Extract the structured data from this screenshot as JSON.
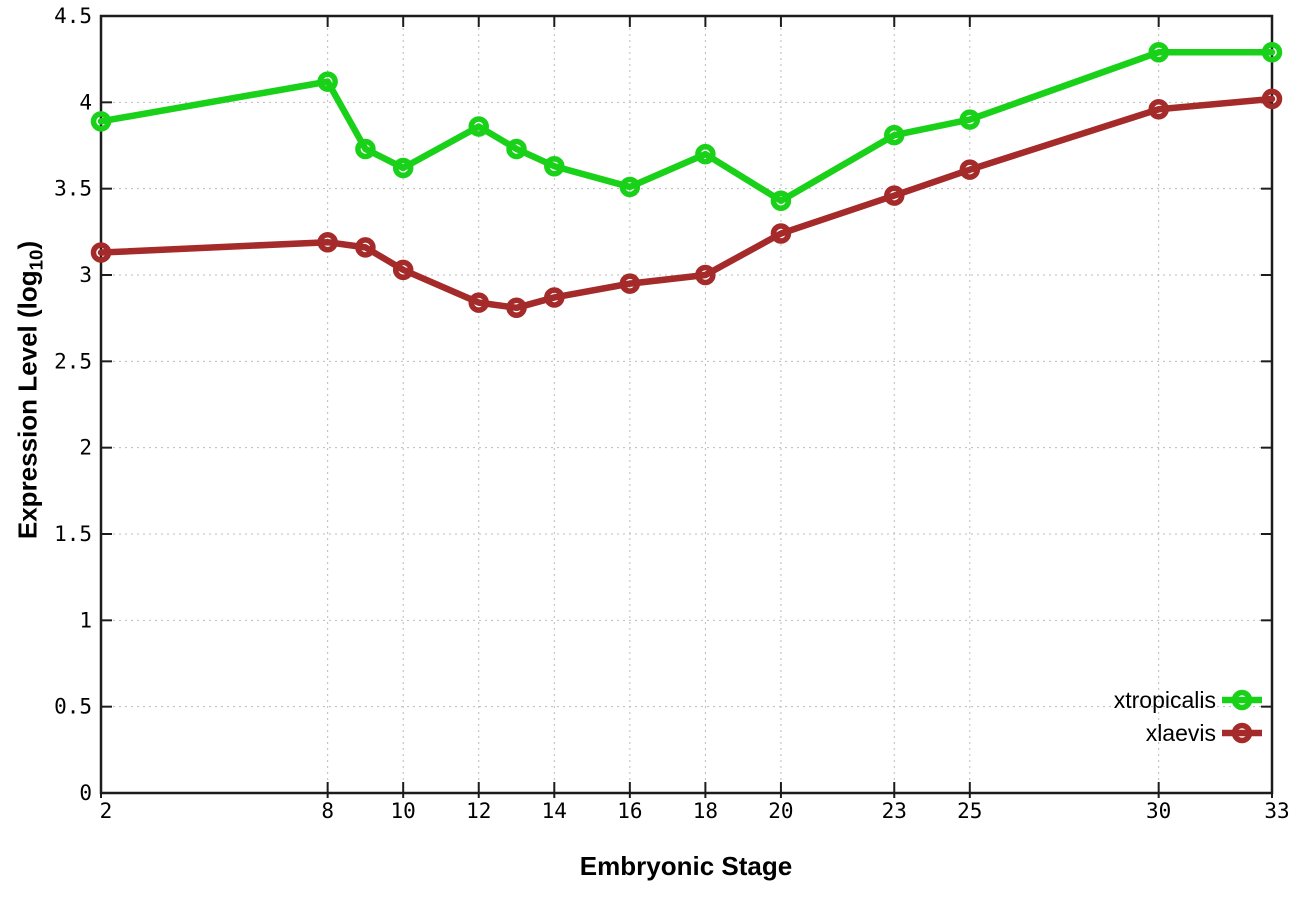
{
  "chart_data": {
    "type": "line",
    "title": "",
    "xlabel": "Embryonic Stage",
    "ylabel": "Expression Level (log10)",
    "ylabel_parts": [
      "Expression Level (log",
      "10",
      ")"
    ],
    "x": [
      2,
      8,
      9,
      10,
      12,
      13,
      14,
      16,
      18,
      20,
      23,
      25,
      30,
      33
    ],
    "series": [
      {
        "name": "xtropicalis",
        "color": "#19d119",
        "values": [
          3.89,
          4.12,
          3.73,
          3.62,
          3.86,
          3.73,
          3.63,
          3.51,
          3.7,
          3.43,
          3.81,
          3.9,
          4.29,
          4.29
        ]
      },
      {
        "name": "xlaevis",
        "color": "#a52a2a",
        "values": [
          3.13,
          3.19,
          3.16,
          3.03,
          2.84,
          2.81,
          2.87,
          2.95,
          3.0,
          3.24,
          3.46,
          3.61,
          3.96,
          4.02
        ]
      }
    ],
    "xticks": [
      2,
      8,
      10,
      12,
      14,
      16,
      18,
      20,
      23,
      25,
      30,
      33
    ],
    "yticks": [
      0,
      0.5,
      1,
      1.5,
      2,
      2.5,
      3,
      3.5,
      4,
      4.5
    ],
    "xlim": [
      2,
      33
    ],
    "ylim": [
      0,
      4.5
    ],
    "grid": true,
    "legend_position": "inside-bottom-right",
    "marker": "open-circle",
    "colors": {
      "background": "#ffffff",
      "axis": "#1c1c1c",
      "grid": "#bbbbbb",
      "text": "#000000"
    }
  }
}
